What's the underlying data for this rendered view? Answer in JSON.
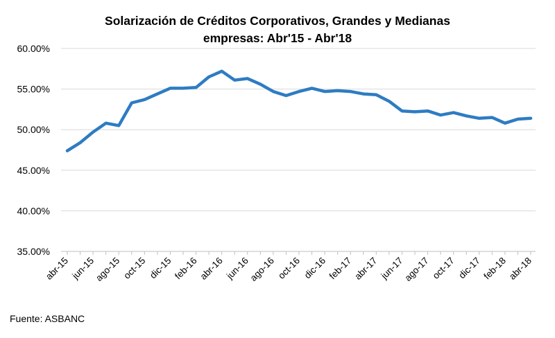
{
  "chart_data": {
    "type": "line",
    "title_line1": "Solarización de Créditos Corporativos, Grandes y Medianas",
    "title_line2": "empresas: Abr'15 - Abr'18",
    "xlabel": "",
    "ylabel": "",
    "ylim": [
      35,
      60
    ],
    "yticks": [
      35,
      40,
      45,
      50,
      55,
      60
    ],
    "ytick_labels": [
      "35.00%",
      "40.00%",
      "45.00%",
      "50.00%",
      "55.00%",
      "60.00%"
    ],
    "xtick_labels": [
      "abr-15",
      "jun-15",
      "ago-15",
      "oct-15",
      "dic-15",
      "feb-16",
      "abr-16",
      "jun-16",
      "ago-16",
      "oct-16",
      "dic-16",
      "feb-17",
      "abr-17",
      "jun-17",
      "ago-17",
      "oct-17",
      "dic-17",
      "feb-18",
      "abr-18"
    ],
    "grid": true,
    "line_color": "#2E7CC3",
    "series": [
      {
        "x": [
          "abr-15",
          "may-15",
          "jun-15",
          "jul-15",
          "ago-15",
          "sep-15",
          "oct-15",
          "nov-15",
          "dic-15",
          "ene-16",
          "feb-16",
          "mar-16",
          "abr-16",
          "may-16",
          "jun-16",
          "jul-16",
          "ago-16",
          "sep-16",
          "oct-16",
          "nov-16",
          "dic-16",
          "ene-17",
          "feb-17",
          "mar-17",
          "abr-17",
          "may-17",
          "jun-17",
          "jul-17",
          "ago-17",
          "sep-17",
          "oct-17",
          "nov-17",
          "dic-17",
          "ene-18",
          "feb-18",
          "mar-18",
          "abr-18"
        ],
        "values": [
          47.4,
          48.4,
          49.7,
          50.8,
          50.5,
          53.3,
          53.7,
          54.4,
          55.1,
          55.1,
          55.2,
          56.5,
          57.2,
          56.1,
          56.3,
          55.6,
          54.7,
          54.2,
          54.7,
          55.1,
          54.7,
          54.8,
          54.7,
          54.4,
          54.3,
          53.5,
          52.3,
          52.2,
          52.3,
          51.8,
          52.1,
          51.7,
          51.4,
          51.5,
          50.8,
          51.3,
          51.4
        ]
      }
    ]
  },
  "source": "Fuente: ASBANC"
}
